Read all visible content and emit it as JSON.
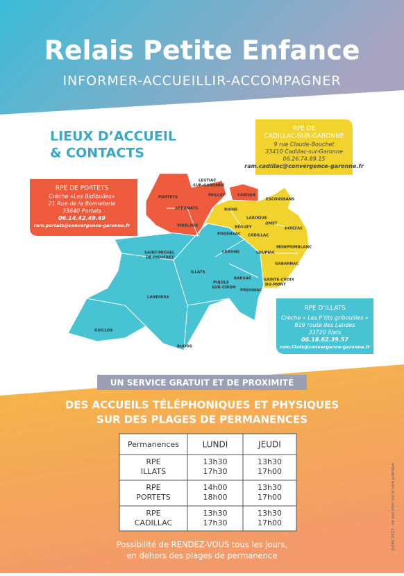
{
  "header": {
    "title": "Relais Petite Enfance",
    "subtitle": "INFORMER-ACCUEILLIR-ACCOMPAGNER"
  },
  "section_title": [
    "LIEUX D’ACCUEIL",
    "& CONTACTS"
  ],
  "contacts": {
    "portets": {
      "title": "RPE DE PORTETS",
      "lines": [
        "Crèche «Les Bidibulles»",
        "21 Rue de la Bonneterie",
        "33640 Portets",
        "06.14.42.49.49",
        "ram.portets@convergence-garonne.fr"
      ]
    },
    "cadillac": {
      "title": [
        "RPE DE",
        "CADILLAC-SUR-GARONNE"
      ],
      "lines": [
        "9 rue Claude-Bouchet",
        "33410 Cadillac-sur-Garonne",
        "06.26.74.89.15",
        "ram.cadillac@convergence-garonne.fr"
      ]
    },
    "illats": {
      "title": "RPE D’ILLATS",
      "lines": [
        "Crèche « Les P’tits gribouilles »",
        "819 route des Landes",
        "33720 Illats",
        "06.18.62.39.57",
        "ram.illats@convergence-garonne.fr"
      ]
    }
  },
  "map": {
    "labels": [
      "PORTETS",
      "ARBANATS",
      "VIRELADE",
      "LESTIAC",
      "SUR-GARONNE",
      "PAILLET",
      "CARDAN",
      "RIONS",
      "ESCOUSSANS",
      "LAROQUE",
      "BÉGUEY",
      "OMET",
      "DONZAC",
      "PODENSAC",
      "CADILLAC",
      "CÉRONS",
      "LOUPIAC",
      "MONPRIMBLANC",
      "GABARNAC",
      "SAINTE-CROIX",
      "DU-MONT",
      "SAINT-MICHEL",
      "DE-RIEUFRET",
      "ILLATS",
      "BARSAC",
      "PUJOLS",
      "SUR-CIRON",
      "PREIGNAC",
      "LANDIRAS",
      "GUILLOS",
      "BUDOS"
    ]
  },
  "banner": "UN SERVICE GRATUIT ET DE PROXIMITÉ",
  "headline": [
    "DES ACCUEILS TÉLÉPHONIQUES ET PHYSIQUES",
    "SUR DES PLAGES DE PERMANENCES"
  ],
  "table": {
    "header": [
      "Permanences",
      "LUNDI",
      "JEUDI"
    ],
    "rows": [
      [
        [
          "RPE",
          "ILLATS"
        ],
        [
          "13h30",
          "17h30"
        ],
        [
          "13h30",
          "17h00"
        ]
      ],
      [
        [
          "RPE",
          "PORTETS"
        ],
        [
          "14h00",
          "18h00"
        ],
        [
          "13h30",
          "17h00"
        ]
      ],
      [
        [
          "RPE",
          "CADILLAC"
        ],
        [
          "13h30",
          "17h30"
        ],
        [
          "13h30",
          "17h00"
        ]
      ]
    ]
  },
  "footer": [
    "Possibilité de RENDEZ-VOUS tous les jours,",
    "en dehors des plages de permanence"
  ],
  "side_note": "Juillet 2023 - ne pas jeter sur la voie publique"
}
